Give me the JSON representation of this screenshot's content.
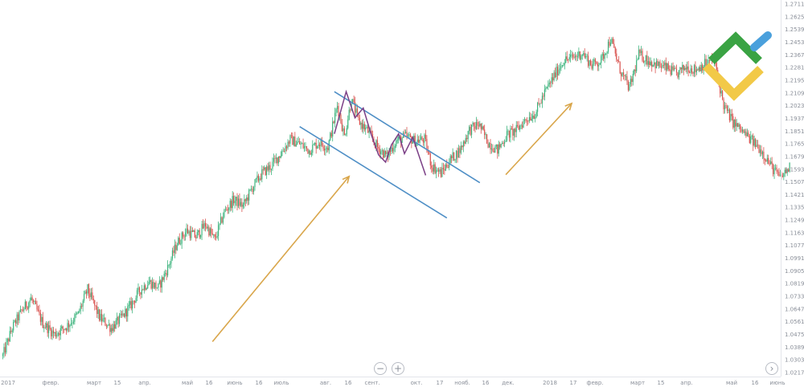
{
  "chart_data": {
    "type": "candlestick",
    "title": "",
    "xlabel": "",
    "ylabel": "",
    "ylim": [
      1.0317,
      1.2711
    ],
    "grid": false,
    "y_ticks": [
      "1.27110",
      "1.26250",
      "1.25390",
      "1.24530",
      "1.23670",
      "1.22810",
      "1.21950",
      "1.21090",
      "1.20230",
      "1.19370",
      "1.18510",
      "1.17650",
      "1.16790",
      "1.15930",
      "1.15070",
      "1.14210",
      "1.13350",
      "1.12490",
      "1.11630",
      "1.10770",
      "1.09910",
      "1.09050",
      "1.08190",
      "1.07330",
      "1.06470",
      "1.05610",
      "1.04750",
      "1.03890",
      "1.03030",
      "1.02170"
    ],
    "x_ticks": [
      "2017",
      "февр.",
      "март",
      "15",
      "апр.",
      "май",
      "16",
      "июнь",
      "16",
      "июль",
      "авг.",
      "16",
      "сент.",
      "окт.",
      "17",
      "нояб.",
      "16",
      "дек.",
      "2018",
      "17",
      "февр.",
      "март",
      "15",
      "апр.",
      "май",
      "16",
      "июнь"
    ],
    "trend_path": [
      [
        0,
        1.043
      ],
      [
        8,
        1.061
      ],
      [
        16,
        1.072
      ],
      [
        24,
        1.08
      ],
      [
        34,
        1.064
      ],
      [
        44,
        1.057
      ],
      [
        54,
        1.062
      ],
      [
        64,
        1.07
      ],
      [
        72,
        1.086
      ],
      [
        82,
        1.068
      ],
      [
        92,
        1.061
      ],
      [
        100,
        1.067
      ],
      [
        108,
        1.075
      ],
      [
        116,
        1.085
      ],
      [
        124,
        1.091
      ],
      [
        132,
        1.087
      ],
      [
        140,
        1.1
      ],
      [
        148,
        1.116
      ],
      [
        156,
        1.124
      ],
      [
        164,
        1.12
      ],
      [
        172,
        1.128
      ],
      [
        180,
        1.118
      ],
      [
        188,
        1.136
      ],
      [
        196,
        1.144
      ],
      [
        204,
        1.14
      ],
      [
        212,
        1.152
      ],
      [
        220,
        1.161
      ],
      [
        228,
        1.166
      ],
      [
        236,
        1.174
      ],
      [
        244,
        1.183
      ],
      [
        252,
        1.18
      ],
      [
        260,
        1.176
      ],
      [
        268,
        1.181
      ],
      [
        276,
        1.178
      ],
      [
        284,
        1.205
      ],
      [
        290,
        1.185
      ],
      [
        296,
        1.209
      ],
      [
        302,
        1.195
      ],
      [
        310,
        1.188
      ],
      [
        318,
        1.178
      ],
      [
        326,
        1.172
      ],
      [
        334,
        1.182
      ],
      [
        342,
        1.185
      ],
      [
        350,
        1.182
      ],
      [
        358,
        1.183
      ],
      [
        364,
        1.166
      ],
      [
        372,
        1.161
      ],
      [
        380,
        1.17
      ],
      [
        388,
        1.176
      ],
      [
        396,
        1.189
      ],
      [
        404,
        1.193
      ],
      [
        412,
        1.181
      ],
      [
        420,
        1.176
      ],
      [
        428,
        1.186
      ],
      [
        436,
        1.189
      ],
      [
        444,
        1.196
      ],
      [
        452,
        1.2
      ],
      [
        460,
        1.213
      ],
      [
        468,
        1.224
      ],
      [
        476,
        1.234
      ],
      [
        484,
        1.236
      ],
      [
        492,
        1.239
      ],
      [
        500,
        1.231
      ],
      [
        508,
        1.234
      ],
      [
        516,
        1.248
      ],
      [
        524,
        1.228
      ],
      [
        532,
        1.216
      ],
      [
        540,
        1.238
      ],
      [
        548,
        1.234
      ],
      [
        556,
        1.231
      ],
      [
        564,
        1.229
      ],
      [
        572,
        1.225
      ],
      [
        580,
        1.23
      ],
      [
        588,
        1.228
      ],
      [
        596,
        1.232
      ],
      [
        604,
        1.234
      ],
      [
        612,
        1.205
      ],
      [
        620,
        1.194
      ],
      [
        628,
        1.188
      ],
      [
        636,
        1.182
      ],
      [
        644,
        1.176
      ],
      [
        652,
        1.166
      ],
      [
        660,
        1.158
      ],
      [
        668,
        1.165
      ]
    ],
    "channel": {
      "upper": [
        [
          281.5,
          1.2139
        ],
        [
          405,
          1.155
        ]
      ],
      "lower": [
        [
          252,
          1.1913
        ],
        [
          377,
          1.1322
        ]
      ]
    },
    "wave": [
      [
        281.5,
        1.1866
      ],
      [
        291.5,
        1.2139
      ],
      [
        299,
        1.197
      ],
      [
        306,
        1.2033
      ],
      [
        312.5,
        1.1868
      ],
      [
        319,
        1.173
      ],
      [
        325,
        1.1683
      ],
      [
        330,
        1.1795
      ],
      [
        336,
        1.1866
      ],
      [
        341,
        1.1738
      ],
      [
        348,
        1.1844
      ],
      [
        359,
        1.1598
      ]
    ],
    "arrows": [
      {
        "from": [
          178,
          1.0522
        ],
        "to": [
          294,
          1.1591
        ]
      },
      {
        "from": [
          427,
          1.1602
        ],
        "to": [
          483,
          1.2063
        ]
      }
    ]
  },
  "colors": {
    "up": "#3eb47e",
    "down": "#d9534f",
    "channel": "#4f8fc6",
    "wave": "#7b3f86",
    "arrow": "#d9a64b",
    "axis_text": "#8a8f99",
    "logo_green": "#3aa343",
    "logo_yellow": "#f2c947",
    "logo_blue": "#4aa0dc"
  },
  "controls": {
    "zoom_out_label": "−",
    "zoom_in_label": "+",
    "scroll_right_label": "›"
  },
  "logo": {
    "icon": "litefinance-logo"
  }
}
